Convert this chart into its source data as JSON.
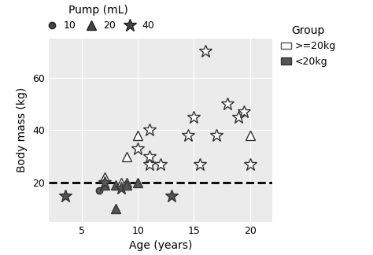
{
  "title": "",
  "xlabel": "Age (years)",
  "ylabel": "Body mass (kg)",
  "xlim": [
    2,
    22
  ],
  "ylim": [
    5,
    75
  ],
  "xticks": [
    5,
    10,
    15,
    20
  ],
  "yticks": [
    20,
    40,
    60
  ],
  "dashed_line_y": 20,
  "background_color": "#ebebeb",
  "pump_legend_title": "Pump (mL)",
  "group_legend_title": "Group",
  "group_ge20_label": ">=20kg",
  "group_lt20_label": "<20kg",
  "color_lt20": "#555555",
  "points": [
    {
      "age": 3.5,
      "mass": 15,
      "pump": 40,
      "group": "<20kg"
    },
    {
      "age": 6.5,
      "mass": 17,
      "pump": 10,
      "group": "<20kg"
    },
    {
      "age": 7,
      "mass": 22,
      "pump": 20,
      "group": ">=20kg"
    },
    {
      "age": 7,
      "mass": 19,
      "pump": 20,
      "group": "<20kg"
    },
    {
      "age": 7,
      "mass": 20,
      "pump": 40,
      "group": "<20kg"
    },
    {
      "age": 8,
      "mass": 10,
      "pump": 20,
      "group": "<20kg"
    },
    {
      "age": 8,
      "mass": 19,
      "pump": 20,
      "group": "<20kg"
    },
    {
      "age": 8.5,
      "mass": 20,
      "pump": 20,
      "group": ">=20kg"
    },
    {
      "age": 8.5,
      "mass": 18,
      "pump": 40,
      "group": "<20kg"
    },
    {
      "age": 9,
      "mass": 20,
      "pump": 20,
      "group": ">=20kg"
    },
    {
      "age": 9,
      "mass": 19,
      "pump": 20,
      "group": "<20kg"
    },
    {
      "age": 9,
      "mass": 30,
      "pump": 20,
      "group": ">=20kg"
    },
    {
      "age": 10,
      "mass": 20,
      "pump": 20,
      "group": "<20kg"
    },
    {
      "age": 10,
      "mass": 33,
      "pump": 40,
      "group": ">=20kg"
    },
    {
      "age": 10,
      "mass": 38,
      "pump": 20,
      "group": ">=20kg"
    },
    {
      "age": 11,
      "mass": 27,
      "pump": 40,
      "group": ">=20kg"
    },
    {
      "age": 11,
      "mass": 30,
      "pump": 40,
      "group": ">=20kg"
    },
    {
      "age": 11,
      "mass": 40,
      "pump": 40,
      "group": ">=20kg"
    },
    {
      "age": 12,
      "mass": 27,
      "pump": 40,
      "group": ">=20kg"
    },
    {
      "age": 13,
      "mass": 15,
      "pump": 40,
      "group": "<20kg"
    },
    {
      "age": 14.5,
      "mass": 38,
      "pump": 40,
      "group": ">=20kg"
    },
    {
      "age": 15,
      "mass": 45,
      "pump": 40,
      "group": ">=20kg"
    },
    {
      "age": 15.5,
      "mass": 27,
      "pump": 40,
      "group": ">=20kg"
    },
    {
      "age": 16,
      "mass": 70,
      "pump": 40,
      "group": ">=20kg"
    },
    {
      "age": 17,
      "mass": 38,
      "pump": 40,
      "group": ">=20kg"
    },
    {
      "age": 18,
      "mass": 50,
      "pump": 40,
      "group": ">=20kg"
    },
    {
      "age": 19,
      "mass": 45,
      "pump": 40,
      "group": ">=20kg"
    },
    {
      "age": 19.5,
      "mass": 47,
      "pump": 40,
      "group": ">=20kg"
    },
    {
      "age": 20,
      "mass": 38,
      "pump": 20,
      "group": ">=20kg"
    },
    {
      "age": 20,
      "mass": 27,
      "pump": 40,
      "group": ">=20kg"
    }
  ]
}
